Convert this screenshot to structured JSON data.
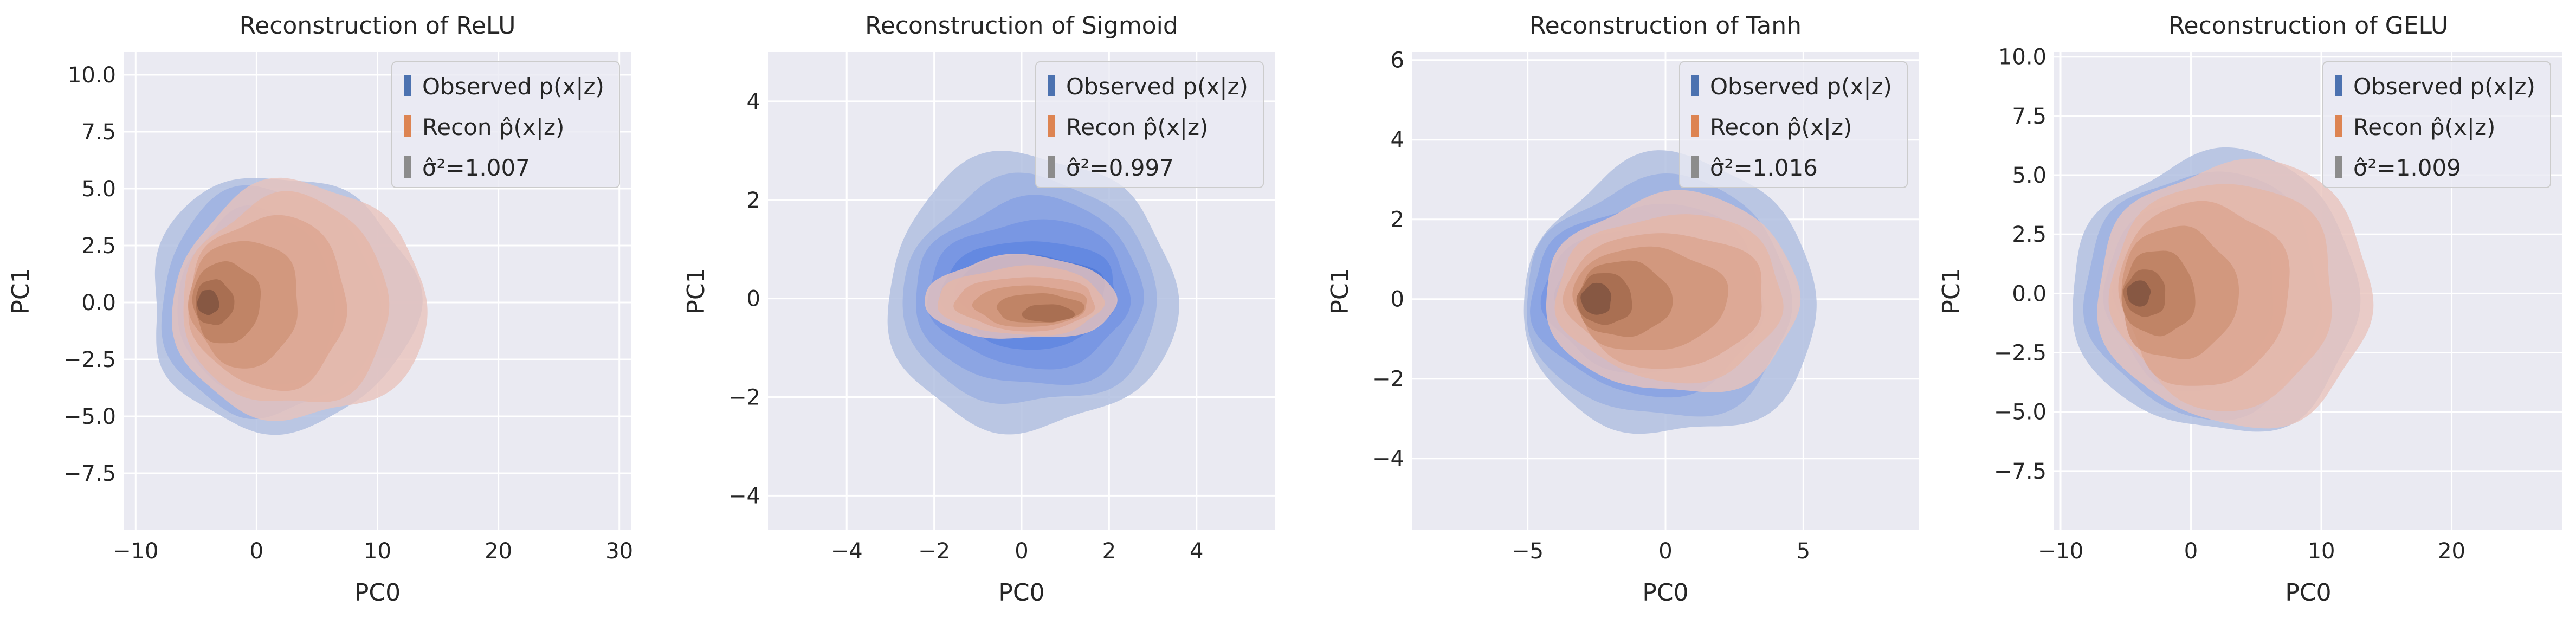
{
  "figure": {
    "background": "#ffffff",
    "axes_background": "#EAEAF2",
    "grid_color": "#ffffff"
  },
  "colors": {
    "observed": "#4C72B0",
    "recon": "#DD8452",
    "sigma": "#8C8C8C"
  },
  "chart_data": [
    {
      "type": "kde-contour",
      "title": "Reconstruction of ReLU",
      "xlabel": "PC0",
      "ylabel": "PC1",
      "xlim": [
        -11,
        31
      ],
      "ylim": [
        -10,
        11
      ],
      "xticks": [
        -10,
        0,
        10,
        20,
        30
      ],
      "xtick_labels": [
        "−10",
        "0",
        "10",
        "20",
        "30"
      ],
      "yticks": [
        -7.5,
        -5.0,
        -2.5,
        0.0,
        2.5,
        5.0,
        7.5,
        10.0
      ],
      "ytick_labels": [
        "−7.5",
        "−5.0",
        "−2.5",
        "0.0",
        "2.5",
        "5.0",
        "7.5",
        "10.0"
      ],
      "legend": {
        "position": "top-right",
        "items": [
          {
            "label": "Observed p(x|z)",
            "series": "observed"
          },
          {
            "label": "Recon p̂(x|z)",
            "series": "recon"
          },
          {
            "label": "σ̂²=1.007",
            "series": "sigma"
          }
        ]
      },
      "sigma2": 1.007,
      "series": [
        {
          "name": "Observed p(x|z)",
          "color": "#4C72B0",
          "levels": [
            {
              "cx": 2.0,
              "cy": 0.0,
              "rx": 11.0,
              "ry": 5.6
            },
            {
              "cx": 1.0,
              "cy": 0.0,
              "rx": 9.0,
              "ry": 5.0
            },
            {
              "cx": 0.0,
              "cy": 0.0,
              "rx": 6.5,
              "ry": 4.0
            },
            {
              "cx": -2.0,
              "cy": 0.0,
              "rx": 4.0,
              "ry": 2.5
            },
            {
              "cx": -3.5,
              "cy": 0.0,
              "rx": 2.0,
              "ry": 1.2
            },
            {
              "cx": -4.0,
              "cy": 0.0,
              "rx": 0.9,
              "ry": 0.5
            }
          ]
        },
        {
          "name": "Recon p̂(x|z)",
          "color": "#DD8452",
          "levels": [
            {
              "cx": 3.5,
              "cy": 0.0,
              "rx": 10.5,
              "ry": 5.2
            },
            {
              "cx": 2.5,
              "cy": 0.0,
              "rx": 8.5,
              "ry": 4.6
            },
            {
              "cx": 1.0,
              "cy": 0.0,
              "rx": 6.5,
              "ry": 3.8
            },
            {
              "cx": -1.0,
              "cy": 0.0,
              "rx": 4.5,
              "ry": 2.8
            },
            {
              "cx": -2.5,
              "cy": 0.0,
              "rx": 2.8,
              "ry": 1.8
            },
            {
              "cx": -3.5,
              "cy": 0.0,
              "rx": 1.6,
              "ry": 1.0
            },
            {
              "cx": -4.0,
              "cy": 0.0,
              "rx": 0.9,
              "ry": 0.55
            }
          ]
        }
      ]
    },
    {
      "type": "kde-contour",
      "title": "Reconstruction of Sigmoid",
      "xlabel": "PC0",
      "ylabel": "PC1",
      "xlim": [
        -5.8,
        5.8
      ],
      "ylim": [
        -4.7,
        5.0
      ],
      "xticks": [
        -4,
        -2,
        0,
        2,
        4
      ],
      "xtick_labels": [
        "−4",
        "−2",
        "0",
        "2",
        "4"
      ],
      "yticks": [
        -4,
        -2,
        0,
        2,
        4
      ],
      "ytick_labels": [
        "−4",
        "−2",
        "0",
        "2",
        "4"
      ],
      "legend": {
        "position": "top-right",
        "items": [
          {
            "label": "Observed p(x|z)",
            "series": "observed"
          },
          {
            "label": "Recon p̂(x|z)",
            "series": "recon"
          },
          {
            "label": "σ̂²=0.997",
            "series": "sigma"
          }
        ]
      },
      "sigma2": 0.997,
      "series": [
        {
          "name": "Observed p(x|z)",
          "color": "#4C72B0",
          "levels": [
            {
              "cx": 0.2,
              "cy": 0.1,
              "rx": 3.3,
              "ry": 2.8
            },
            {
              "cx": 0.2,
              "cy": 0.1,
              "rx": 2.9,
              "ry": 2.3
            },
            {
              "cx": 0.2,
              "cy": 0.1,
              "rx": 2.6,
              "ry": 1.9
            },
            {
              "cx": 0.2,
              "cy": 0.1,
              "rx": 2.3,
              "ry": 1.5
            },
            {
              "cx": 0.2,
              "cy": 0.1,
              "rx": 2.0,
              "ry": 1.1
            },
            {
              "cx": 0.2,
              "cy": 0.1,
              "rx": 1.7,
              "ry": 0.8
            }
          ]
        },
        {
          "name": "Recon p̂(x|z)",
          "color": "#DD8452",
          "levels": [
            {
              "cx": 0.0,
              "cy": 0.0,
              "rx": 2.2,
              "ry": 0.85
            },
            {
              "cx": 0.0,
              "cy": -0.05,
              "rx": 1.9,
              "ry": 0.7
            },
            {
              "cx": 0.1,
              "cy": -0.1,
              "rx": 1.6,
              "ry": 0.55
            },
            {
              "cx": 0.2,
              "cy": -0.15,
              "rx": 1.3,
              "ry": 0.42
            },
            {
              "cx": 0.4,
              "cy": -0.2,
              "rx": 1.0,
              "ry": 0.3
            },
            {
              "cx": 0.6,
              "cy": -0.3,
              "rx": 0.6,
              "ry": 0.18
            }
          ]
        }
      ]
    },
    {
      "type": "kde-contour",
      "title": "Reconstruction of Tanh",
      "xlabel": "PC0",
      "ylabel": "PC1",
      "xlim": [
        -9.2,
        9.2
      ],
      "ylim": [
        -5.8,
        6.2
      ],
      "xticks": [
        -5,
        0,
        5
      ],
      "xtick_labels": [
        "−5",
        "0",
        "5"
      ],
      "yticks": [
        -4,
        -2,
        0,
        2,
        4,
        6
      ],
      "ytick_labels": [
        "−4",
        "−2",
        "0",
        "2",
        "4",
        "6"
      ],
      "legend": {
        "position": "top-right",
        "items": [
          {
            "label": "Observed p(x|z)",
            "series": "observed"
          },
          {
            "label": "Recon p̂(x|z)",
            "series": "recon"
          },
          {
            "label": "σ̂²=1.016",
            "series": "sigma"
          }
        ]
      },
      "sigma2": 1.016,
      "series": [
        {
          "name": "Observed p(x|z)",
          "color": "#4C72B0",
          "levels": [
            {
              "cx": 0.2,
              "cy": 0.0,
              "rx": 5.3,
              "ry": 3.5
            },
            {
              "cx": -0.2,
              "cy": 0.0,
              "rx": 4.8,
              "ry": 3.0
            },
            {
              "cx": -0.6,
              "cy": 0.0,
              "rx": 4.2,
              "ry": 2.4
            },
            {
              "cx": -1.0,
              "cy": 0.0,
              "rx": 3.4,
              "ry": 1.8
            },
            {
              "cx": -1.6,
              "cy": 0.0,
              "rx": 2.4,
              "ry": 1.2
            }
          ]
        },
        {
          "name": "Recon p̂(x|z)",
          "color": "#DD8452",
          "levels": [
            {
              "cx": 0.3,
              "cy": 0.1,
              "rx": 4.6,
              "ry": 2.5
            },
            {
              "cx": 0.2,
              "cy": 0.05,
              "rx": 4.1,
              "ry": 2.1
            },
            {
              "cx": 0.0,
              "cy": 0.0,
              "rx": 3.6,
              "ry": 1.7
            },
            {
              "cx": -0.6,
              "cy": 0.0,
              "rx": 2.8,
              "ry": 1.3
            },
            {
              "cx": -1.5,
              "cy": 0.0,
              "rx": 1.7,
              "ry": 0.95
            },
            {
              "cx": -2.2,
              "cy": 0.0,
              "rx": 1.0,
              "ry": 0.65
            },
            {
              "cx": -2.5,
              "cy": 0.0,
              "rx": 0.55,
              "ry": 0.4
            }
          ]
        }
      ]
    },
    {
      "type": "kde-contour",
      "title": "Reconstruction of GELU",
      "xlabel": "PC0",
      "ylabel": "PC1",
      "xlim": [
        -10.5,
        28.5
      ],
      "ylim": [
        -10,
        10.2
      ],
      "xticks": [
        -10,
        0,
        10,
        20
      ],
      "xtick_labels": [
        "−10",
        "0",
        "10",
        "20"
      ],
      "yticks": [
        -7.5,
        -5.0,
        -2.5,
        0.0,
        2.5,
        5.0,
        7.5,
        10.0
      ],
      "ytick_labels": [
        "−7.5",
        "−5.0",
        "−2.5",
        "0.0",
        "2.5",
        "5.0",
        "7.5",
        "10.0"
      ],
      "legend": {
        "position": "top-right",
        "items": [
          {
            "label": "Observed p(x|z)",
            "series": "observed"
          },
          {
            "label": "Recon p̂(x|z)",
            "series": "recon"
          },
          {
            "label": "σ̂²=1.009",
            "series": "sigma"
          }
        ]
      },
      "sigma2": 1.009,
      "series": [
        {
          "name": "Observed p(x|z)",
          "color": "#4C72B0",
          "levels": [
            {
              "cx": 2.0,
              "cy": 0.0,
              "rx": 11.0,
              "ry": 5.9
            },
            {
              "cx": 1.0,
              "cy": 0.0,
              "rx": 9.0,
              "ry": 5.2
            },
            {
              "cx": 0.0,
              "cy": 0.0,
              "rx": 6.5,
              "ry": 4.0
            },
            {
              "cx": -2.0,
              "cy": 0.0,
              "rx": 4.0,
              "ry": 2.5
            },
            {
              "cx": -3.5,
              "cy": 0.0,
              "rx": 2.0,
              "ry": 1.2
            },
            {
              "cx": -4.0,
              "cy": 0.0,
              "rx": 0.9,
              "ry": 0.5
            }
          ]
        },
        {
          "name": "Recon p̂(x|z)",
          "color": "#DD8452",
          "levels": [
            {
              "cx": 3.5,
              "cy": 0.0,
              "rx": 10.5,
              "ry": 5.6
            },
            {
              "cx": 2.5,
              "cy": 0.0,
              "rx": 8.5,
              "ry": 4.8
            },
            {
              "cx": 1.0,
              "cy": 0.0,
              "rx": 6.5,
              "ry": 3.9
            },
            {
              "cx": -1.0,
              "cy": 0.0,
              "rx": 4.5,
              "ry": 2.8
            },
            {
              "cx": -2.5,
              "cy": 0.0,
              "rx": 2.8,
              "ry": 1.8
            },
            {
              "cx": -3.5,
              "cy": 0.0,
              "rx": 1.6,
              "ry": 1.0
            },
            {
              "cx": -4.0,
              "cy": 0.0,
              "rx": 0.9,
              "ry": 0.55
            }
          ]
        }
      ]
    }
  ]
}
